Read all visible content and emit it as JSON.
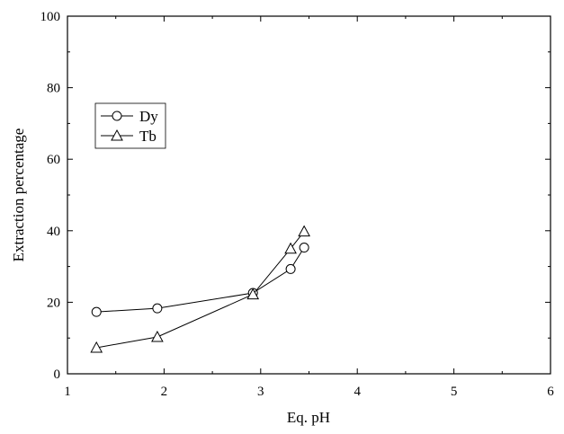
{
  "chart_data": {
    "type": "line",
    "xlabel": "Eq. pH",
    "ylabel": "Extraction percentage",
    "xlim": [
      1,
      6
    ],
    "ylim": [
      0,
      100
    ],
    "x_ticks": [
      "1",
      "2",
      "3",
      "4",
      "5",
      "6"
    ],
    "y_ticks": [
      "0",
      "20",
      "40",
      "60",
      "80",
      "100"
    ],
    "grid": false,
    "legend_position": "upper-left",
    "series": [
      {
        "name": "Dy",
        "marker": "circle",
        "color": "#000000",
        "x": [
          1.3,
          1.93,
          2.92,
          3.31,
          3.45
        ],
        "y": [
          17.3,
          18.3,
          22.6,
          29.3,
          35.3
        ]
      },
      {
        "name": "Tb",
        "marker": "triangle",
        "color": "#000000",
        "x": [
          1.3,
          1.93,
          2.92,
          3.31,
          3.45
        ],
        "y": [
          7.3,
          10.3,
          22.2,
          35.0,
          39.8
        ]
      }
    ]
  }
}
